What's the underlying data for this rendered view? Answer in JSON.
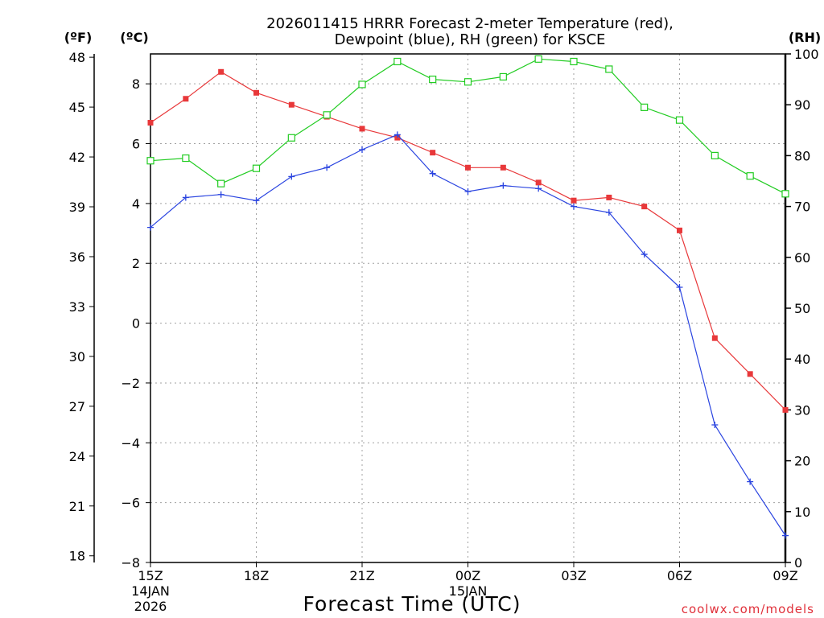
{
  "chart_data": {
    "type": "line",
    "title": "2026011415 HRRR Forecast 2-meter Temperature (red),",
    "subtitle": "Dewpoint (blue), RH (green) for KSCE",
    "xlabel": "Forecast Time (UTC)",
    "credit": "coolwx.com/models",
    "unit_left_outer": "(ºF)",
    "unit_left_inner": "(ºC)",
    "unit_right": "(RH)",
    "x_ticks": [
      {
        "hour": 0,
        "label": "15Z",
        "date": "14JAN",
        "year": "2026"
      },
      {
        "hour": 3,
        "label": "18Z"
      },
      {
        "hour": 6,
        "label": "21Z"
      },
      {
        "hour": 9,
        "label": "00Z",
        "date": "15JAN"
      },
      {
        "hour": 12,
        "label": "03Z"
      },
      {
        "hour": 15,
        "label": "06Z"
      },
      {
        "hour": 18,
        "label": "09Z"
      }
    ],
    "xlim": [
      0,
      18
    ],
    "celsius_axis": {
      "ylim": [
        -8,
        9
      ],
      "ticks": [
        -8,
        -6,
        -4,
        -2,
        0,
        2,
        4,
        6,
        8
      ],
      "tick_labels": [
        "−8",
        "−6",
        "−4",
        "−2",
        "0",
        "2",
        "4",
        "6",
        "8"
      ]
    },
    "fahrenheit_axis": {
      "ticks": [
        18,
        21,
        24,
        27,
        30,
        33,
        36,
        39,
        42,
        45,
        48
      ],
      "tick_labels": [
        "18",
        "21",
        "24",
        "27",
        "30",
        "33",
        "36",
        "39",
        "42",
        "45",
        "48"
      ]
    },
    "rh_axis": {
      "ylim": [
        0,
        100
      ],
      "ticks": [
        0,
        10,
        20,
        30,
        40,
        50,
        60,
        70,
        80,
        90,
        100
      ],
      "tick_labels": [
        "0",
        "10",
        "20",
        "30",
        "40",
        "50",
        "60",
        "70",
        "80",
        "90",
        "100"
      ]
    },
    "colors": {
      "temperature": "#e8383a",
      "dewpoint": "#2a44e0",
      "rh": "#22cc22"
    },
    "series": [
      {
        "name": "Temperature",
        "axis": "celsius",
        "marker": "filled-square",
        "x": [
          0,
          1,
          2,
          3,
          4,
          5,
          6,
          7,
          8,
          9,
          10,
          11,
          12,
          13,
          14,
          15,
          16,
          17,
          18
        ],
        "values": [
          6.7,
          7.5,
          8.4,
          7.7,
          7.3,
          6.9,
          6.5,
          6.2,
          5.7,
          5.2,
          5.2,
          4.7,
          4.1,
          4.2,
          3.9,
          3.1,
          -0.5,
          -1.7,
          -2.9
        ]
      },
      {
        "name": "Dewpoint",
        "axis": "celsius",
        "marker": "plus",
        "x": [
          0,
          1,
          2,
          3,
          4,
          5,
          6,
          7,
          8,
          9,
          10,
          11,
          12,
          13,
          14,
          15,
          16,
          17,
          18
        ],
        "values": [
          3.2,
          4.2,
          4.3,
          4.1,
          4.9,
          5.2,
          5.8,
          6.3,
          5.0,
          4.4,
          4.6,
          4.5,
          3.9,
          3.7,
          2.3,
          1.2,
          -3.4,
          -5.3,
          -7.1
        ]
      },
      {
        "name": "RH",
        "axis": "rh",
        "marker": "open-square",
        "x": [
          0,
          1,
          2,
          3,
          4,
          5,
          6,
          7,
          8,
          9,
          10,
          11,
          12,
          13,
          14,
          15,
          16,
          17,
          18
        ],
        "values": [
          79,
          79.5,
          74.5,
          77.5,
          83.5,
          88,
          94,
          98.5,
          95,
          94.5,
          95.5,
          99,
          98.5,
          97,
          89.5,
          87,
          80,
          76,
          72.5
        ]
      }
    ]
  }
}
